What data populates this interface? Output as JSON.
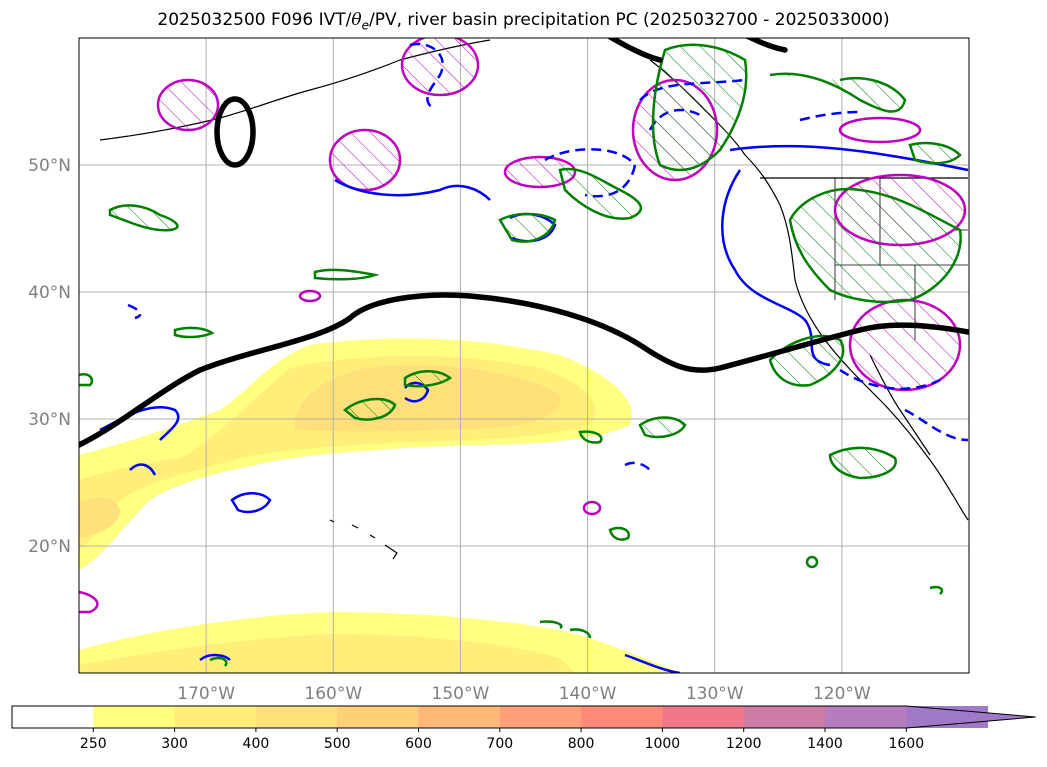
{
  "title": {
    "prefix": "2025032500 F096 IVT/",
    "theta": "θ",
    "theta_sub": "e",
    "suffix": "/PV, river basin precipitation PC (2025032700 - 2025033000)"
  },
  "map": {
    "lon_range": [
      -180,
      -110
    ],
    "lat_range": [
      10,
      60
    ],
    "lon_ticks": [
      {
        "lon": -170,
        "label": "170°W"
      },
      {
        "lon": -160,
        "label": "160°W"
      },
      {
        "lon": -150,
        "label": "150°W"
      },
      {
        "lon": -140,
        "label": "140°W"
      },
      {
        "lon": -130,
        "label": "130°W"
      },
      {
        "lon": -120,
        "label": "120°W"
      }
    ],
    "lat_ticks": [
      {
        "lat": 20,
        "label": "20°N"
      },
      {
        "lat": 30,
        "label": "30°N"
      },
      {
        "lat": 40,
        "label": "40°N"
      },
      {
        "lat": 50,
        "label": "50°N"
      }
    ],
    "grid": true,
    "jet_contour_color": "#000000",
    "pv_contour_color": "#0000ff",
    "theta_contour_color": "#008000",
    "precip_contour_color": "#c000c0"
  },
  "colorbar": {
    "levels": [
      "250",
      "300",
      "400",
      "500",
      "600",
      "700",
      "800",
      "1000",
      "1200",
      "1400",
      "1600"
    ],
    "colors": [
      "#ffff80",
      "#ffef7a",
      "#ffe07a",
      "#ffd07a",
      "#ffb878",
      "#ffa078",
      "#ff8a7a",
      "#f07888",
      "#d07aa8",
      "#b77cc0",
      "#a07ac8"
    ],
    "extend": "max"
  }
}
